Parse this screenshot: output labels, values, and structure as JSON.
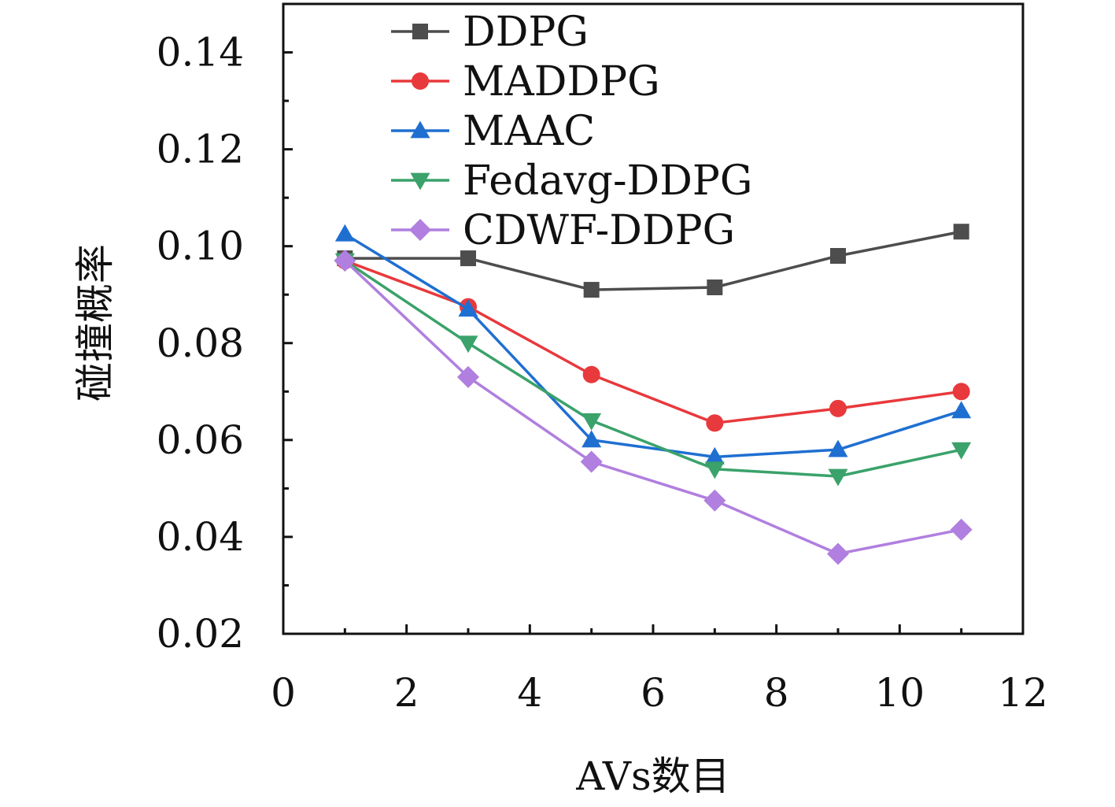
{
  "chart_data": {
    "type": "line",
    "title": "",
    "xlabel": "AVs数目",
    "ylabel": "碰撞概率",
    "xlim": [
      0,
      12
    ],
    "ylim": [
      0.02,
      0.15
    ],
    "xticks": [
      "0",
      "2",
      "4",
      "6",
      "8",
      "10",
      "12"
    ],
    "yticks": [
      "0.02",
      "0.04",
      "0.06",
      "0.08",
      "0.10",
      "0.12",
      "0.14"
    ],
    "grid": false,
    "legend_position": "top-left",
    "x": [
      1,
      3,
      5,
      7,
      9,
      11
    ],
    "series": [
      {
        "name": "DDPG",
        "color": "#4d4d4d",
        "marker": "square",
        "values": [
          0.0975,
          0.0975,
          0.091,
          0.0915,
          0.098,
          0.103
        ]
      },
      {
        "name": "MADDPG",
        "color": "#e8393c",
        "marker": "circle",
        "values": [
          0.097,
          0.0875,
          0.0735,
          0.0635,
          0.0665,
          0.07
        ]
      },
      {
        "name": "MAAC",
        "color": "#1f6fd1",
        "marker": "triangle-up",
        "values": [
          0.1025,
          0.087,
          0.06,
          0.0565,
          0.058,
          0.066
        ]
      },
      {
        "name": "Fedavg-DDPG",
        "color": "#3aa26a",
        "marker": "triangle-down",
        "values": [
          0.097,
          0.08,
          0.064,
          0.054,
          0.0525,
          0.058
        ]
      },
      {
        "name": "CDWF-DDPG",
        "color": "#b07fdf",
        "marker": "diamond",
        "values": [
          0.097,
          0.073,
          0.0555,
          0.0475,
          0.0365,
          0.0415
        ]
      }
    ]
  }
}
